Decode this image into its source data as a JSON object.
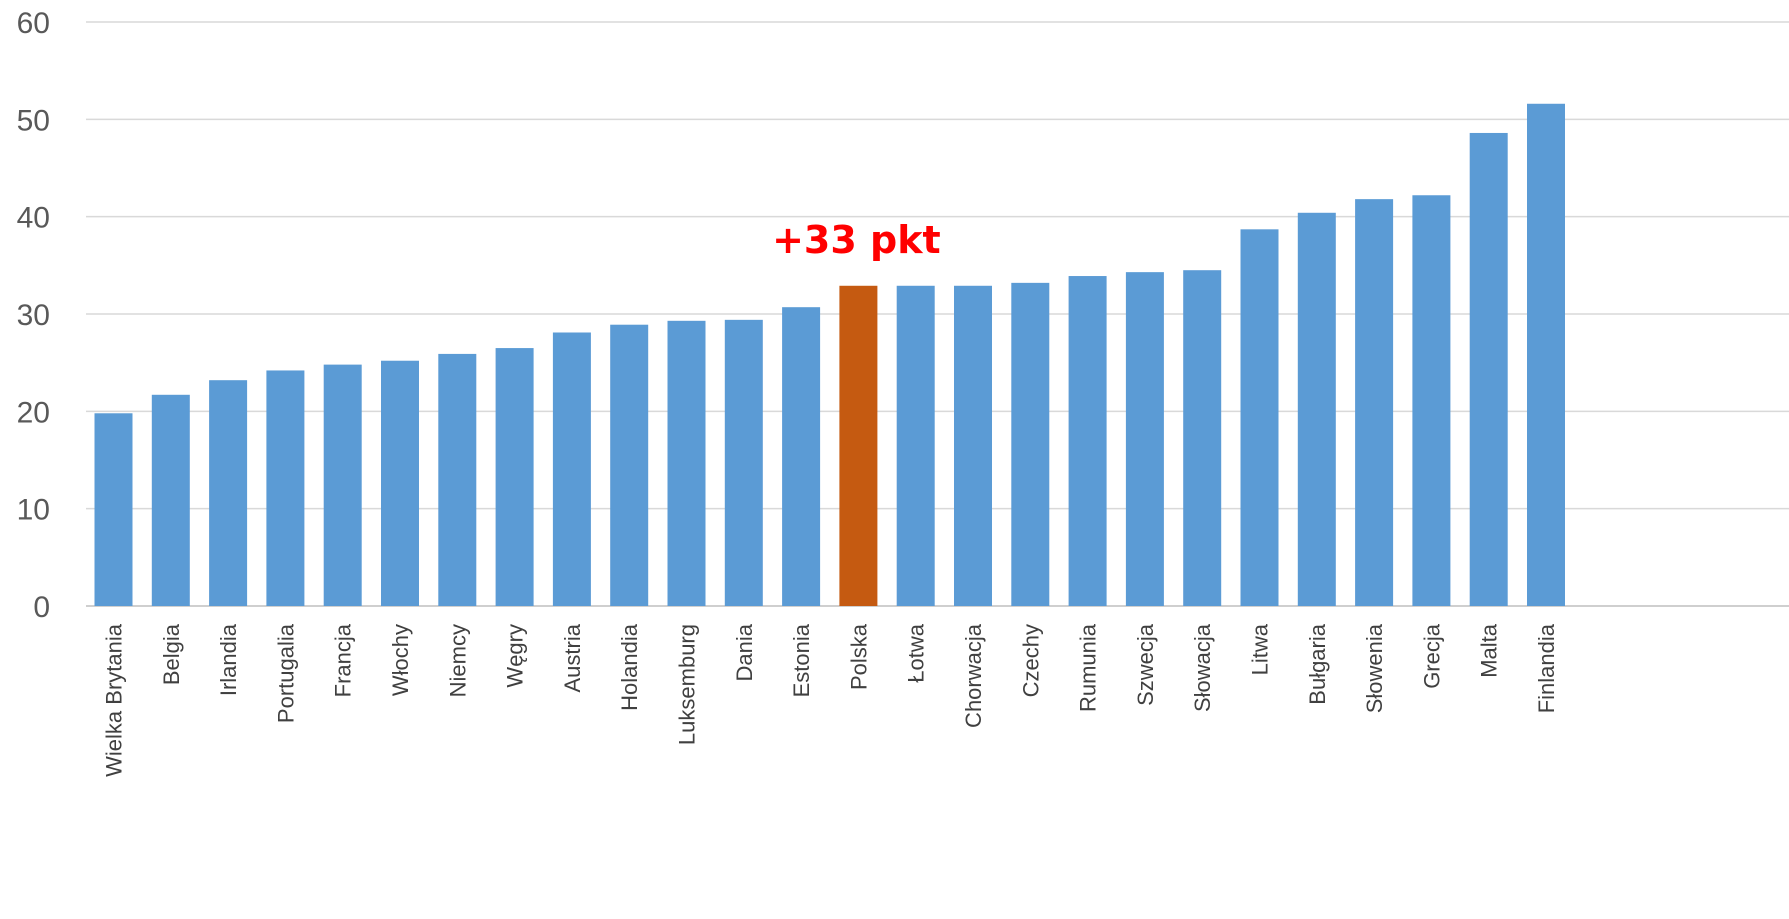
{
  "chart_data": {
    "type": "bar",
    "title": "",
    "xlabel": "",
    "ylabel": "",
    "ylim": [
      0,
      60
    ],
    "yticks": [
      "0",
      "10",
      "20",
      "30",
      "40",
      "50",
      "60"
    ],
    "grid": true,
    "categories": [
      "Wielka Brytania",
      "Belgia",
      "Irlandia",
      "Portugalia",
      "Francja",
      "Włochy",
      "Niemcy",
      "Węgry",
      "Austria",
      "Holandia",
      "Luksemburg",
      "Dania",
      "Estonia",
      "Polska",
      "Łotwa",
      "Chorwacja",
      "Czechy",
      "Rumunia",
      "Szwecja",
      "Słowacja",
      "Litwa",
      "Bułgaria",
      "Słowenia",
      "Grecja",
      "Malta",
      "Finlandia"
    ],
    "values": [
      19.8,
      21.7,
      23.2,
      24.2,
      24.8,
      25.2,
      25.9,
      26.5,
      28.1,
      28.9,
      29.3,
      29.4,
      30.7,
      32.9,
      32.9,
      32.9,
      33.2,
      33.9,
      34.3,
      34.5,
      38.7,
      40.4,
      41.8,
      42.2,
      48.6,
      51.6
    ],
    "colors": {
      "default": "#5b9bd5",
      "highlight": "#c55a11"
    },
    "highlight_category": "Polska",
    "annotation": {
      "text": "+33 pkt",
      "color": "#ff0000",
      "category": "Polska"
    }
  }
}
